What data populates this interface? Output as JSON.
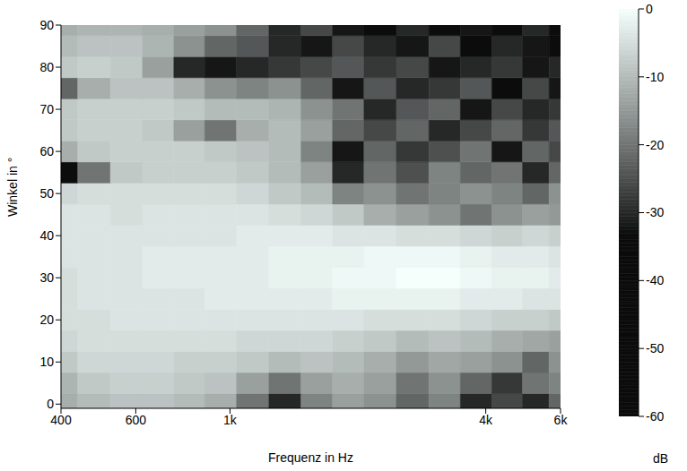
{
  "chart_data": {
    "type": "heatmap",
    "x_label": "Frequenz in Hz",
    "y_label": "Winkel in °",
    "log": "x",
    "x": [
      400,
      480,
      570,
      680,
      800,
      950,
      1130,
      1350,
      1600,
      1900,
      2250,
      2700,
      3200,
      3800,
      4500,
      5300,
      6000
    ],
    "y": [
      0,
      5,
      10,
      15,
      20,
      25,
      30,
      35,
      40,
      45,
      50,
      55,
      60,
      65,
      70,
      75,
      80,
      85,
      90
    ],
    "values": [
      [
        -12,
        -10,
        -9,
        -9,
        -10,
        -12,
        -20,
        -30,
        -18,
        -14,
        -16,
        -22,
        -18,
        -30,
        -26,
        -30,
        -22
      ],
      [
        -11,
        -8,
        -7,
        -7,
        -8,
        -9,
        -14,
        -20,
        -14,
        -12,
        -14,
        -20,
        -16,
        -22,
        -28,
        -20,
        -18
      ],
      [
        -8,
        -6,
        -6,
        -6,
        -7,
        -7,
        -8,
        -10,
        -9,
        -10,
        -12,
        -15,
        -13,
        -14,
        -16,
        -22,
        -16
      ],
      [
        -6,
        -5,
        -5,
        -5,
        -5,
        -5,
        -6,
        -6,
        -6,
        -7,
        -8,
        -10,
        -9,
        -10,
        -12,
        -13,
        -14
      ],
      [
        -5,
        -5,
        -4,
        -4,
        -4,
        -4,
        -4,
        -4,
        -4,
        -4,
        -5,
        -5,
        -5,
        -6,
        -7,
        -7,
        -8
      ],
      [
        -5,
        -4,
        -4,
        -4,
        -4,
        -3,
        -3,
        -3,
        -3,
        -2,
        -2,
        -2,
        -2,
        -3,
        -3,
        -4,
        -4
      ],
      [
        -5,
        -4,
        -4,
        -3,
        -3,
        -3,
        -3,
        -2,
        -2,
        -1,
        -1,
        0,
        0,
        -1,
        -2,
        -2,
        -3
      ],
      [
        -4,
        -4,
        -4,
        -3,
        -3,
        -3,
        -3,
        -2,
        -2,
        -2,
        -1,
        -1,
        -1,
        -2,
        -3,
        -3,
        -4
      ],
      [
        -4,
        -4,
        -4,
        -4,
        -4,
        -4,
        -3,
        -3,
        -3,
        -4,
        -4,
        -5,
        -5,
        -6,
        -7,
        -6,
        -7
      ],
      [
        -4,
        -4,
        -5,
        -4,
        -4,
        -4,
        -4,
        -5,
        -6,
        -8,
        -12,
        -14,
        -16,
        -20,
        -16,
        -14,
        -15
      ],
      [
        -6,
        -5,
        -5,
        -5,
        -5,
        -5,
        -6,
        -8,
        -10,
        -18,
        -16,
        -20,
        -18,
        -16,
        -18,
        -22,
        -16
      ],
      [
        -35,
        -20,
        -8,
        -7,
        -7,
        -7,
        -8,
        -10,
        -14,
        -30,
        -20,
        -25,
        -18,
        -22,
        -20,
        -30,
        -22
      ],
      [
        -12,
        -8,
        -7,
        -7,
        -7,
        -8,
        -9,
        -10,
        -18,
        -32,
        -22,
        -28,
        -25,
        -20,
        -32,
        -22,
        -26
      ],
      [
        -8,
        -7,
        -7,
        -8,
        -14,
        -20,
        -12,
        -10,
        -14,
        -22,
        -26,
        -22,
        -30,
        -26,
        -22,
        -28,
        -24
      ],
      [
        -8,
        -7,
        -7,
        -7,
        -8,
        -10,
        -10,
        -11,
        -16,
        -20,
        -30,
        -24,
        -22,
        -32,
        -26,
        -30,
        -28
      ],
      [
        -22,
        -12,
        -9,
        -9,
        -12,
        -16,
        -18,
        -16,
        -22,
        -32,
        -24,
        -30,
        -28,
        -24,
        -34,
        -26,
        -32
      ],
      [
        -8,
        -7,
        -8,
        -14,
        -30,
        -32,
        -30,
        -28,
        -26,
        -24,
        -28,
        -26,
        -32,
        -30,
        -28,
        -32,
        -30
      ],
      [
        -10,
        -9,
        -9,
        -11,
        -16,
        -22,
        -24,
        -30,
        -32,
        -26,
        -30,
        -32,
        -26,
        -34,
        -30,
        -32,
        -34
      ],
      [
        -12,
        -11,
        -11,
        -12,
        -14,
        -16,
        -22,
        -30,
        -26,
        -32,
        -34,
        -30,
        -36,
        -32,
        -34,
        -30,
        -36
      ]
    ],
    "xlim": [
      400,
      6000
    ],
    "xticks": [
      400,
      600,
      {
        "value": 1000,
        "label": "1k"
      },
      {
        "value": 4000,
        "label": "4k"
      },
      {
        "value": 6000,
        "label": "6k"
      }
    ],
    "ylim": [
      -1,
      90
    ],
    "yticks": [
      0,
      10,
      20,
      30,
      40,
      50,
      60,
      70,
      80,
      90
    ],
    "colorbar": {
      "label": "dB",
      "range": [
        -60,
        0
      ],
      "ticks": [
        -60,
        -50,
        -40,
        -30,
        -20,
        -10,
        0
      ]
    }
  }
}
